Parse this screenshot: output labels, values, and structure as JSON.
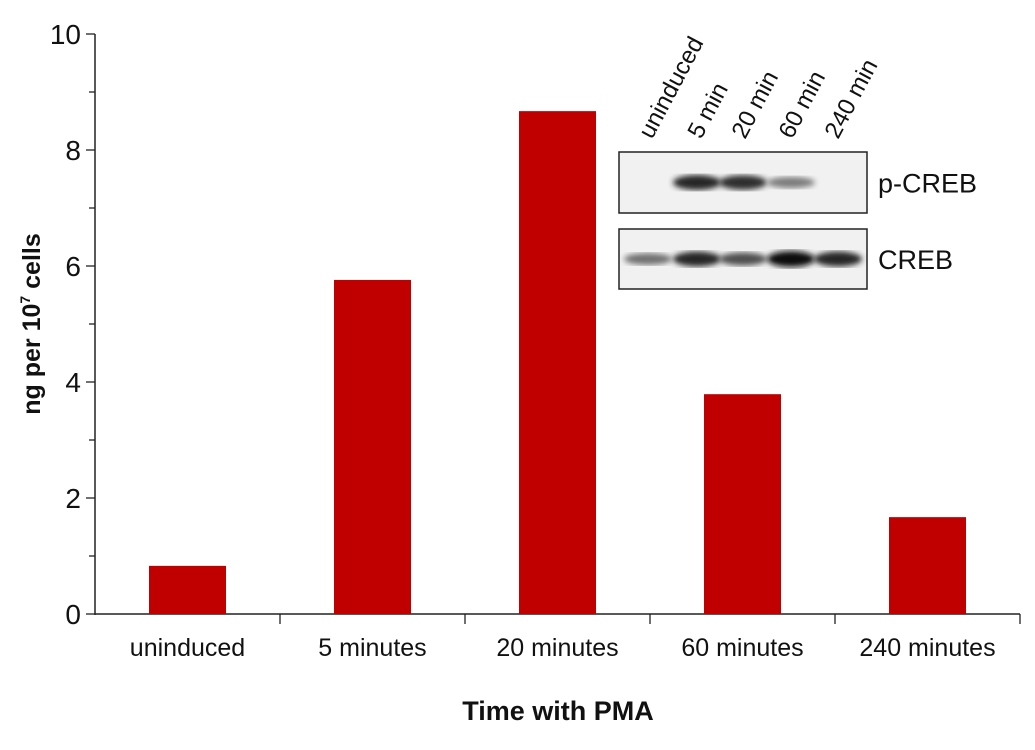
{
  "chart_data": {
    "type": "bar",
    "categories": [
      "uninduced",
      "5 minutes",
      "20 minutes",
      "60 minutes",
      "240 minutes"
    ],
    "values": [
      0.83,
      5.76,
      8.67,
      3.79,
      1.67
    ],
    "xlabel": "Time with PMA",
    "ylabel": "ng per 10",
    "ylabel_superscript": "7",
    "ylabel_suffix": " cells",
    "ylim": [
      0,
      10
    ],
    "yticks": [
      "0",
      "2",
      "4",
      "6",
      "8",
      "10"
    ],
    "grid": false,
    "bar_color": "#c00000"
  },
  "inset": {
    "lanes": [
      "uninduced",
      "5 min",
      "20 min",
      "60 min",
      "240 min"
    ],
    "blots": [
      {
        "label": "p-CREB",
        "band_intensity": [
          0,
          0.9,
          0.85,
          0.5,
          0
        ]
      },
      {
        "label": "CREB",
        "band_intensity": [
          0.55,
          0.9,
          0.7,
          1.0,
          0.9
        ]
      }
    ]
  }
}
